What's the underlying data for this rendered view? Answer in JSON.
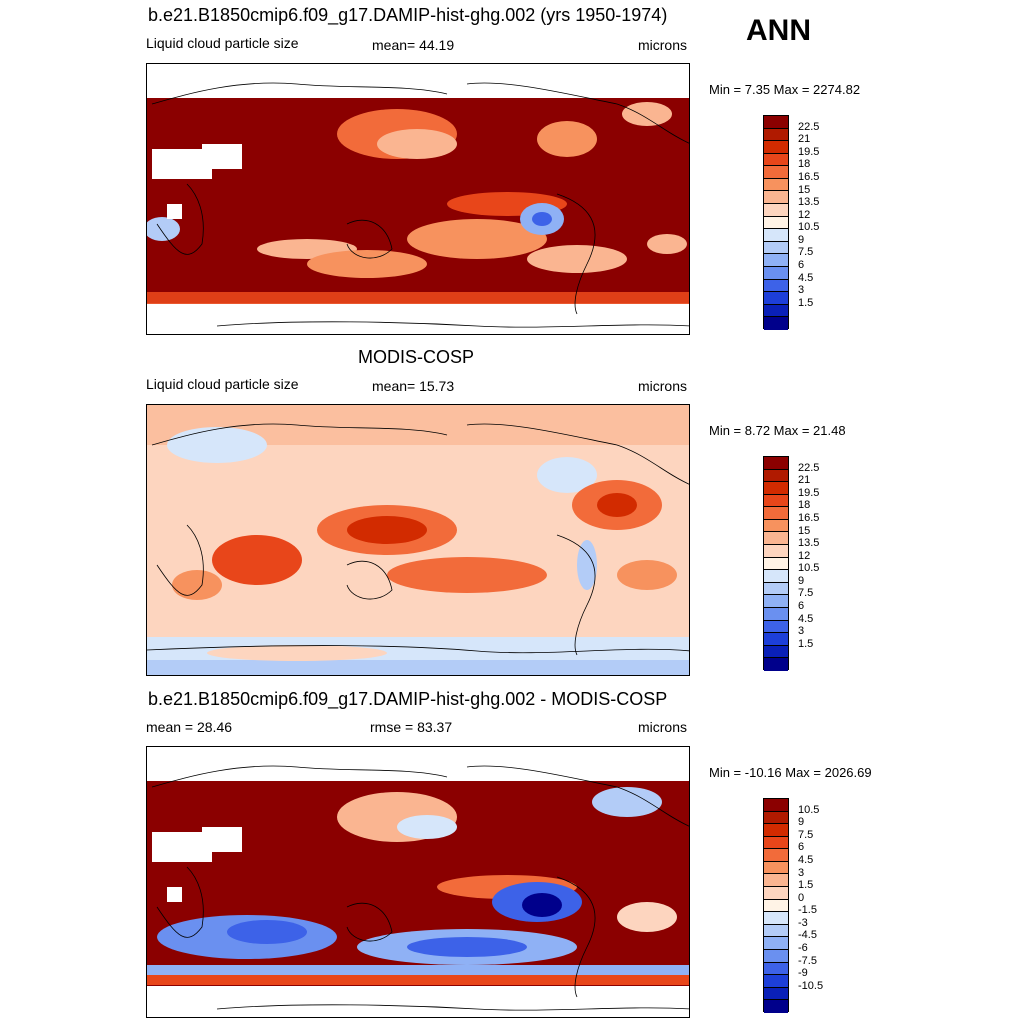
{
  "season": "ANN",
  "panels": [
    {
      "title": "b.e21.B1850cmip6.f09_g17.DAMIP-hist-ghg.002 (yrs 1950-1974)",
      "left_label": "Liquid cloud particle size",
      "center_label": "mean=  44.19",
      "units": "microns",
      "minmax": "Min =   7.35 Max = 2274.82",
      "ticks": [
        "22.5",
        "21",
        "19.5",
        "18",
        "16.5",
        "15",
        "13.5",
        "12",
        "10.5",
        "9",
        "7.5",
        "6",
        "4.5",
        "3",
        "1.5"
      ]
    },
    {
      "title": "MODIS-COSP",
      "left_label": "Liquid cloud particle size",
      "center_label": "mean=  15.73",
      "units": "microns",
      "minmax": "Min =   8.72 Max =  21.48",
      "ticks": [
        "22.5",
        "21",
        "19.5",
        "18",
        "16.5",
        "15",
        "13.5",
        "12",
        "10.5",
        "9",
        "7.5",
        "6",
        "4.5",
        "3",
        "1.5"
      ]
    },
    {
      "title": "b.e21.B1850cmip6.f09_g17.DAMIP-hist-ghg.002 - MODIS-COSP",
      "left_label": "mean =  28.46",
      "center_label": "rmse =  83.37",
      "units": "microns",
      "minmax": "Min = -10.16 Max = 2026.69",
      "ticks": [
        "10.5",
        "9",
        "7.5",
        "6",
        "4.5",
        "3",
        "1.5",
        "0",
        "-1.5",
        "-3",
        "-4.5",
        "-6",
        "-7.5",
        "-9",
        "-10.5"
      ]
    }
  ],
  "colorbar_colors": [
    "#8b0000",
    "#b01a00",
    "#d22b00",
    "#e8461a",
    "#f26b3a",
    "#f7925e",
    "#fab591",
    "#fdd5bf",
    "#fff3e6",
    "#d6e6fa",
    "#b3ccf7",
    "#8fb1f5",
    "#6a90f0",
    "#3d62e8",
    "#1d3fd9",
    "#0a20b8",
    "#00008b"
  ]
}
